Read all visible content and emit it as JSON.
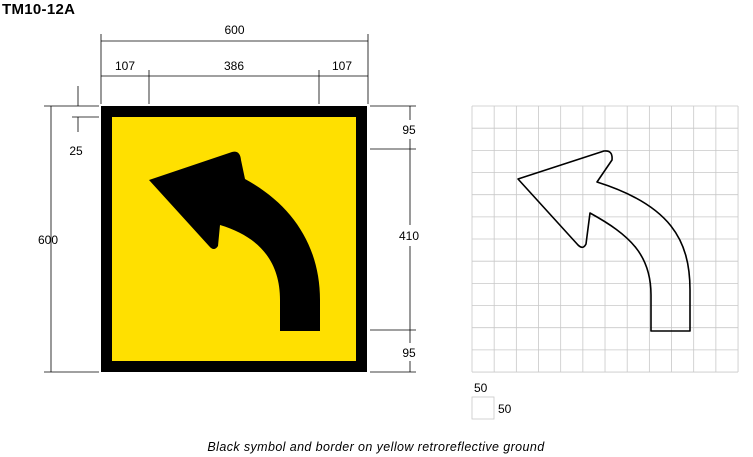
{
  "title": "TM10-12A",
  "dimensions": {
    "overall_width": "600",
    "left_offset": "107",
    "center_span": "386",
    "right_offset": "107",
    "overall_height": "600",
    "border": "25",
    "top_margin": "95",
    "arrow_height": "410",
    "bottom_margin": "95"
  },
  "grid_legend": {
    "height_label": "50",
    "width_label": "50"
  },
  "caption": "Black symbol and border on yellow retroreflective ground",
  "colors": {
    "ground": "#FFE000",
    "symbol": "#000000",
    "grid": "#C8C8C8"
  }
}
